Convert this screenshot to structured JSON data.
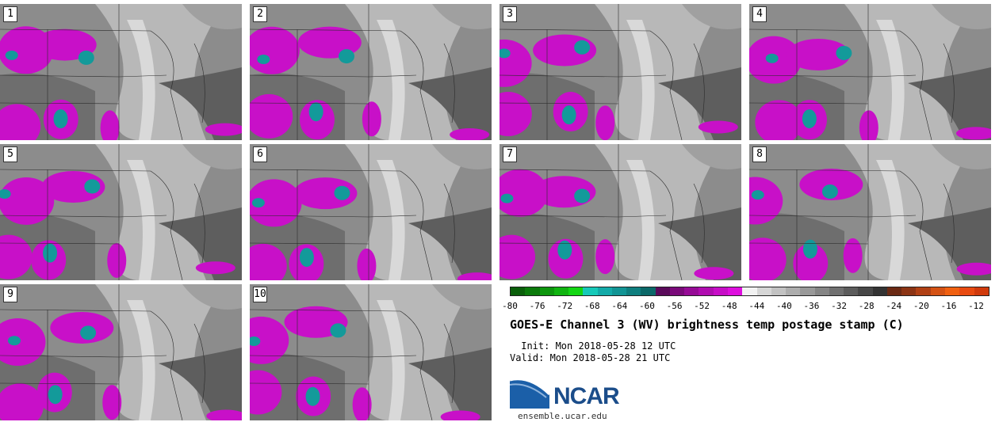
{
  "panels": [
    {
      "label": "1"
    },
    {
      "label": "2"
    },
    {
      "label": "3"
    },
    {
      "label": "4"
    },
    {
      "label": "5"
    },
    {
      "label": "6"
    },
    {
      "label": "7"
    },
    {
      "label": "8"
    },
    {
      "label": "9"
    },
    {
      "label": "10"
    }
  ],
  "colorbar": {
    "colors": [
      "#0a5f0a",
      "#0b7a0b",
      "#0d960d",
      "#10b410",
      "#13d613",
      "#16c9b8",
      "#13aaa8",
      "#119494",
      "#0e7e7e",
      "#0b6868",
      "#5a0a5a",
      "#7a0a7a",
      "#960b96",
      "#b00cb0",
      "#c70dc7",
      "#de0ede",
      "#f2f2f2",
      "#d6d6d6",
      "#c2c2c2",
      "#adadad",
      "#999999",
      "#858585",
      "#707070",
      "#5c5c5c",
      "#474747",
      "#333333",
      "#6b2a14",
      "#8c3414",
      "#b04014",
      "#d45214",
      "#f06010",
      "#e84a10",
      "#d03a0c"
    ],
    "ticks": [
      "-80",
      "-76",
      "-72",
      "-68",
      "-64",
      "-60",
      "-56",
      "-52",
      "-48",
      "-44",
      "-40",
      "-36",
      "-32",
      "-28",
      "-24",
      "-20",
      "-16",
      "-12"
    ]
  },
  "title": "GOES-E Channel 3 (WV) brightness temp postage stamp (C)",
  "init": " Init: Mon 2018-05-28 12 UTC",
  "valid": "Valid: Mon 2018-05-28 21 UTC",
  "logo": {
    "name": "NCAR",
    "url": "ensemble.ucar.edu"
  },
  "colors": {
    "cold_cloud": "#c810c8",
    "very_cold": "#139a9a",
    "background_gray": "#8a8a8a"
  }
}
